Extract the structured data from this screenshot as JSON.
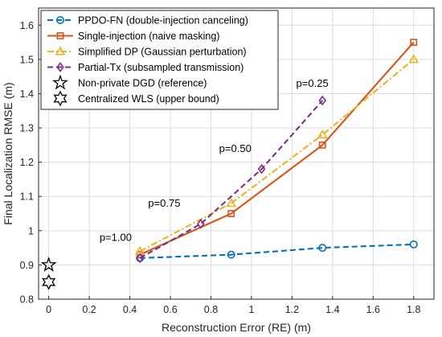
{
  "chart_data": {
    "type": "line",
    "xlabel": "Reconstruction Error (RE) (m)",
    "ylabel": "Final Localization RMSE (m)",
    "xlim": [
      -0.05,
      1.9
    ],
    "ylim": [
      0.8,
      1.65
    ],
    "xticks": [
      0,
      0.2,
      0.4,
      0.6,
      0.8,
      1,
      1.2,
      1.4,
      1.6,
      1.8
    ],
    "xtick_labels": [
      "0",
      "0.2",
      "0.4",
      "0.6",
      "0.8",
      "1",
      "1.2",
      "1.4",
      "1.6",
      "1.8"
    ],
    "yticks": [
      0.8,
      0.9,
      1,
      1.1,
      1.2,
      1.3,
      1.4,
      1.5,
      1.6
    ],
    "ytick_labels": [
      "0.8",
      "0.9",
      "1",
      "1.1",
      "1.2",
      "1.3",
      "1.4",
      "1.5",
      "1.6"
    ],
    "grid": true,
    "legend_position": "top-left",
    "series": [
      {
        "name": "PPDO-FN (double-injection canceling)",
        "color": "#0072BD",
        "line_style": "dashed",
        "marker": "circle",
        "x": [
          0.45,
          0.9,
          1.35,
          1.8
        ],
        "y": [
          0.92,
          0.93,
          0.95,
          0.96
        ]
      },
      {
        "name": "Single-injection (naive masking)",
        "color": "#D95319",
        "line_style": "solid",
        "marker": "square",
        "x": [
          0.45,
          0.9,
          1.35,
          1.8
        ],
        "y": [
          0.93,
          1.05,
          1.25,
          1.55
        ]
      },
      {
        "name": "Simplified DP (Gaussian perturbation)",
        "color": "#EDB120",
        "line_style": "dashdot",
        "marker": "triangle",
        "x": [
          0.45,
          0.9,
          1.35,
          1.8
        ],
        "y": [
          0.94,
          1.08,
          1.28,
          1.5
        ]
      },
      {
        "name": "Partial-Tx (subsampled transmission)",
        "color": "#7E2F8E",
        "line_style": "dashed",
        "marker": "diamond",
        "x": [
          0.45,
          0.75,
          1.05,
          1.35
        ],
        "y": [
          0.92,
          1.02,
          1.18,
          1.38
        ]
      },
      {
        "name": "Non-private DGD (reference)",
        "color": "#000000",
        "line_style": "none",
        "marker": "pentagram",
        "x": [
          0
        ],
        "y": [
          0.9
        ]
      },
      {
        "name": "Centralized WLS (upper bound)",
        "color": "#000000",
        "line_style": "none",
        "marker": "hexagram",
        "x": [
          0
        ],
        "y": [
          0.85
        ]
      }
    ],
    "annotations": [
      {
        "text": "p=0.25",
        "x": 1.3,
        "y": 1.42
      },
      {
        "text": "p=0.50",
        "x": 0.92,
        "y": 1.23
      },
      {
        "text": "p=0.75",
        "x": 0.57,
        "y": 1.07
      },
      {
        "text": "p=1.00",
        "x": 0.33,
        "y": 0.97
      }
    ]
  }
}
